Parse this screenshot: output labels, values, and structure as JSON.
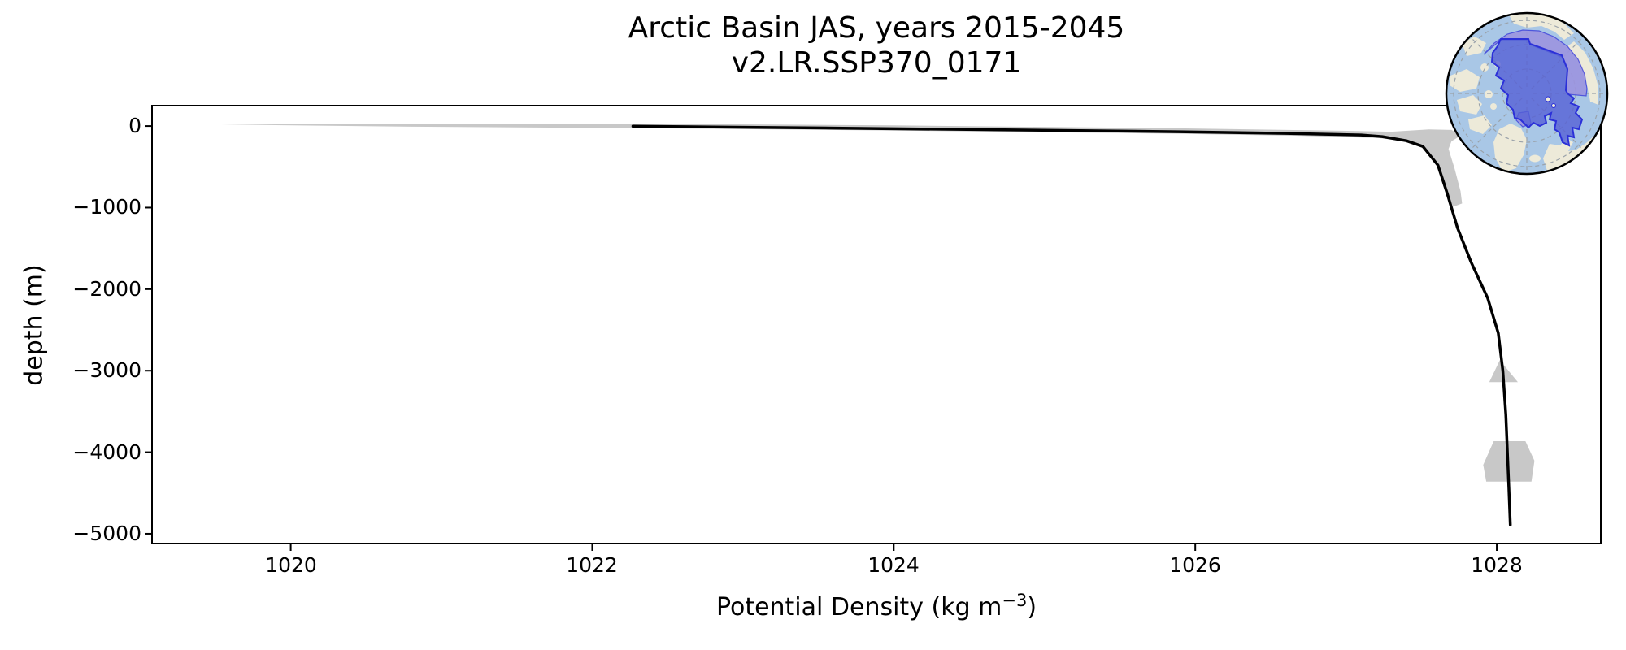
{
  "chart_data": {
    "type": "line",
    "title": "Arctic Basin JAS, years 2015-2045",
    "subtitle": "v2.LR.SSP370_0171",
    "xlabel": "Potential Density (kg m⁻³)",
    "xlabel_parts": {
      "prefix": "Potential Density (kg m",
      "superscript": "−3",
      "suffix": ")"
    },
    "ylabel": "depth (m)",
    "xlim": [
      1019.08,
      1028.69
    ],
    "ylim": [
      -5120,
      250
    ],
    "grid": false,
    "legend": "none",
    "x_ticks": [
      1020,
      1022,
      1024,
      1026,
      1028
    ],
    "x_tick_labels": [
      "1020",
      "1022",
      "1024",
      "1026",
      "1028"
    ],
    "y_ticks": [
      0,
      -1000,
      -2000,
      -3000,
      -4000,
      -5000
    ],
    "y_tick_labels": [
      "0",
      "−1000",
      "−2000",
      "−3000",
      "−4000",
      "−5000"
    ],
    "series": [
      {
        "name": "ensemble mean potential density profile",
        "color": "#000000",
        "x": [
          1022.27,
          1023.6,
          1024.92,
          1025.89,
          1026.6,
          1027.1,
          1027.24,
          1027.4,
          1027.51,
          1027.61,
          1027.67,
          1027.74,
          1027.83,
          1027.94,
          1028.01,
          1028.04,
          1028.06,
          1028.08,
          1028.09
        ],
        "depth": [
          -2,
          -25,
          -50,
          -70,
          -90,
          -110,
          -130,
          -180,
          -250,
          -480,
          -820,
          -1250,
          -1670,
          -2110,
          -2540,
          -3000,
          -3540,
          -4430,
          -4890
        ]
      }
    ],
    "spread": {
      "name": "ensemble spread (min-max envelope)",
      "color": "#c8c8c8",
      "surface_min_density": 1019.54,
      "band_polygon": [
        [
          1019.54,
          18
        ],
        [
          1021.0,
          28
        ],
        [
          1022.27,
          30
        ],
        [
          1024.0,
          8
        ],
        [
          1025.89,
          -28
        ],
        [
          1026.97,
          -58
        ],
        [
          1027.3,
          -70
        ],
        [
          1027.55,
          -42
        ],
        [
          1027.7,
          -48
        ],
        [
          1027.76,
          -120
        ],
        [
          1027.7,
          -185
        ],
        [
          1027.68,
          -280
        ],
        [
          1027.72,
          -520
        ],
        [
          1027.76,
          -800
        ],
        [
          1027.77,
          -950
        ],
        [
          1027.71,
          -990
        ],
        [
          1027.66,
          -760
        ],
        [
          1027.62,
          -520
        ],
        [
          1027.54,
          -300
        ],
        [
          1027.43,
          -195
        ],
        [
          1027.22,
          -148
        ],
        [
          1026.7,
          -120
        ],
        [
          1025.89,
          -95
        ],
        [
          1024.0,
          -55
        ],
        [
          1022.27,
          -25
        ],
        [
          1020.8,
          -8
        ]
      ],
      "patches": [
        {
          "name": "mid-depth-triangle",
          "polygon": [
            [
              1028.02,
              -2870
            ],
            [
              1028.14,
              -3140
            ],
            [
              1027.95,
              -3140
            ]
          ]
        },
        {
          "name": "deep-blob",
          "polygon": [
            [
              1027.98,
              -3865
            ],
            [
              1028.19,
              -3865
            ],
            [
              1028.25,
              -4105
            ],
            [
              1028.23,
              -4360
            ],
            [
              1027.93,
              -4360
            ],
            [
              1027.91,
              -4155
            ]
          ]
        }
      ]
    },
    "inset_map": {
      "name": "arctic-basin-location-map",
      "projection": "north-polar-stereographic",
      "highlighted_region": "Arctic Basin",
      "colors": {
        "ocean": "#a9c7e6",
        "land": "#edead9",
        "region_fill": "#5560d6",
        "region_fill_light": "#9b94df",
        "region_outline": "#2b30d8",
        "graticule": "#9aa2aa"
      }
    }
  }
}
